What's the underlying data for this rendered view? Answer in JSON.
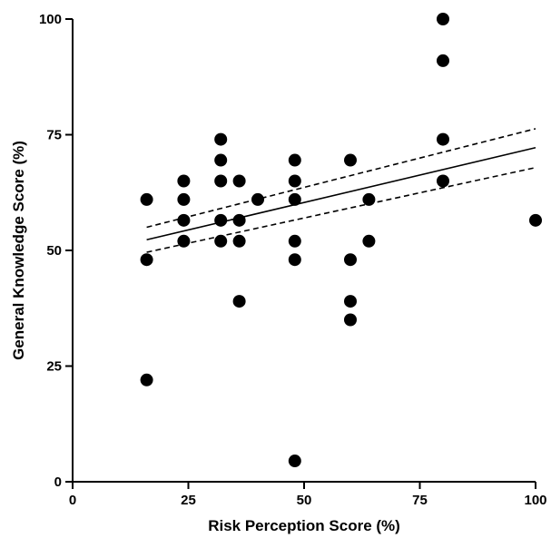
{
  "chart_data": {
    "type": "scatter",
    "xlabel": "Risk Perception Score (%)",
    "ylabel": "General Knowledge Score (%)",
    "xlim": [
      0,
      100
    ],
    "ylim": [
      0,
      100
    ],
    "x_ticks": [
      0,
      25,
      50,
      75,
      100
    ],
    "y_ticks": [
      0,
      25,
      50,
      75,
      100
    ],
    "grid": false,
    "legend": "none",
    "marker_color": "#000000",
    "points": [
      {
        "x": 16,
        "y": 61
      },
      {
        "x": 16,
        "y": 48
      },
      {
        "x": 16,
        "y": 22
      },
      {
        "x": 24,
        "y": 65
      },
      {
        "x": 24,
        "y": 61
      },
      {
        "x": 24,
        "y": 56.5
      },
      {
        "x": 24,
        "y": 52
      },
      {
        "x": 32,
        "y": 74
      },
      {
        "x": 32,
        "y": 69.5
      },
      {
        "x": 32,
        "y": 65
      },
      {
        "x": 32,
        "y": 56.5
      },
      {
        "x": 32,
        "y": 52
      },
      {
        "x": 36,
        "y": 65
      },
      {
        "x": 36,
        "y": 56.5
      },
      {
        "x": 36,
        "y": 52
      },
      {
        "x": 36,
        "y": 39
      },
      {
        "x": 40,
        "y": 61
      },
      {
        "x": 48,
        "y": 69.5
      },
      {
        "x": 48,
        "y": 65
      },
      {
        "x": 48,
        "y": 61
      },
      {
        "x": 48,
        "y": 52
      },
      {
        "x": 48,
        "y": 48
      },
      {
        "x": 48,
        "y": 4.5
      },
      {
        "x": 60,
        "y": 69.5
      },
      {
        "x": 60,
        "y": 48
      },
      {
        "x": 60,
        "y": 39
      },
      {
        "x": 60,
        "y": 35
      },
      {
        "x": 64,
        "y": 61
      },
      {
        "x": 64,
        "y": 52
      },
      {
        "x": 80,
        "y": 100
      },
      {
        "x": 80,
        "y": 91
      },
      {
        "x": 80,
        "y": 74
      },
      {
        "x": 80,
        "y": 65
      },
      {
        "x": 100,
        "y": 56.5
      }
    ],
    "regression_line": {
      "x": [
        16,
        100
      ],
      "y": [
        52.3,
        72.2
      ]
    },
    "confidence_band": {
      "upper": {
        "x": [
          16,
          100
        ],
        "y": [
          55.0,
          76.3
        ]
      },
      "lower": {
        "x": [
          16,
          100
        ],
        "y": [
          49.6,
          67.9
        ]
      }
    }
  }
}
